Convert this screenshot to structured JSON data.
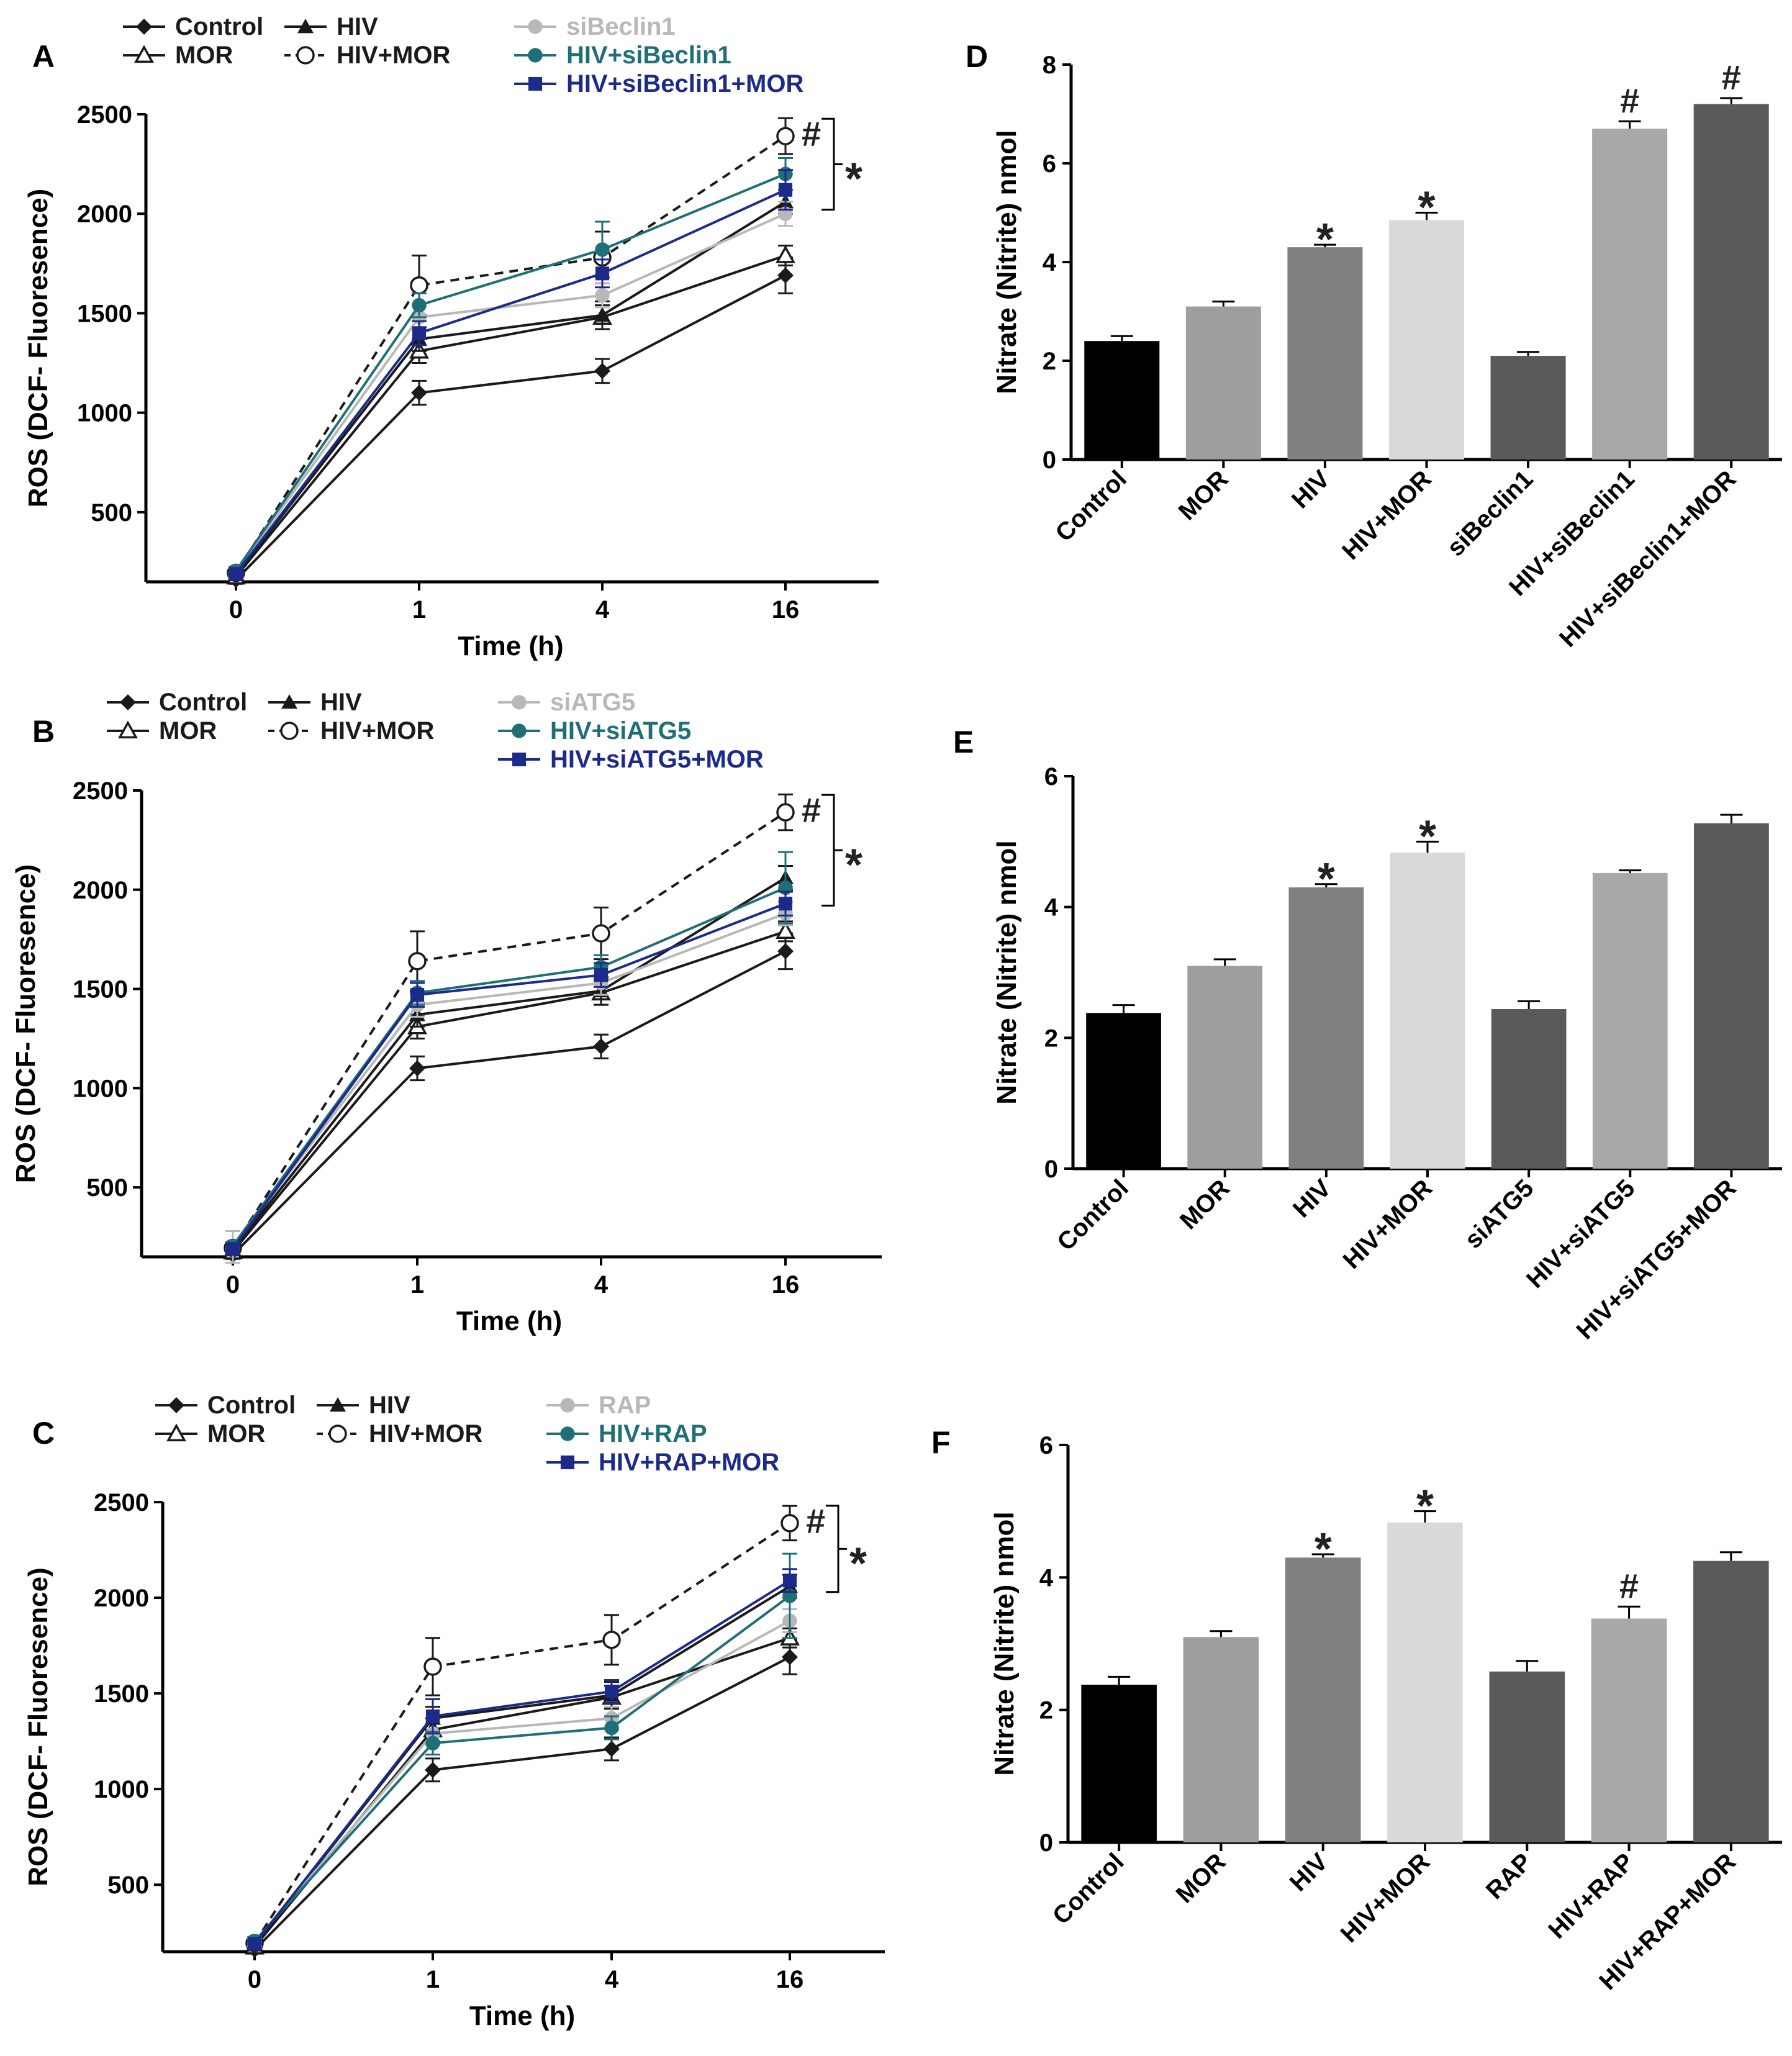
{
  "figure": {
    "bg": "#ffffff"
  },
  "chart_data": [
    {
      "id": "A",
      "panel_label": "A",
      "type": "line",
      "xlabel": "Time (h)",
      "ylabel": "ROS (DCF- Fluoresence)",
      "x": [
        "0",
        "1",
        "4",
        "16"
      ],
      "yticks": [
        "500",
        "1000",
        "1500",
        "2000",
        "2500"
      ],
      "ylim": [
        150,
        2500
      ],
      "series": [
        {
          "name": "Control",
          "values": [
            160,
            1100,
            1210,
            1690
          ],
          "err": [
            20,
            60,
            60,
            90
          ],
          "color": "#1a1a1a",
          "marker": "diamond",
          "dash": false
        },
        {
          "name": "MOR",
          "values": [
            175,
            1310,
            1480,
            1790
          ],
          "err": [
            20,
            60,
            60,
            50
          ],
          "color": "#1a1a1a",
          "marker": "triangle-open",
          "dash": false
        },
        {
          "name": "HIV",
          "values": [
            185,
            1370,
            1490,
            2060
          ],
          "err": [
            20,
            60,
            70,
            60
          ],
          "color": "#1a1a1a",
          "marker": "triangle",
          "dash": false
        },
        {
          "name": "HIV+MOR",
          "values": [
            195,
            1640,
            1780,
            2390
          ],
          "err": [
            20,
            150,
            130,
            90
          ],
          "color": "#1a1a1a",
          "marker": "circle-open",
          "dash": true
        },
        {
          "name": "siBeclin1",
          "values": [
            200,
            1480,
            1590,
            2000
          ],
          "err": [
            20,
            60,
            60,
            60
          ],
          "color": "#b8b8b8",
          "marker": "circle",
          "dash": false
        },
        {
          "name": "HIV+siBeclin1",
          "values": [
            205,
            1540,
            1820,
            2200
          ],
          "err": [
            20,
            60,
            140,
            80
          ],
          "color": "#1f6f78",
          "marker": "circle",
          "dash": false
        },
        {
          "name": "HIV+siBeclin1+MOR",
          "values": [
            190,
            1400,
            1700,
            2120
          ],
          "err": [
            20,
            60,
            70,
            100
          ],
          "color": "#1c2a8a",
          "marker": "square",
          "dash": false
        }
      ],
      "legend": [
        {
          "name": "Control",
          "col": 0,
          "row": 0
        },
        {
          "name": "MOR",
          "col": 0,
          "row": 1
        },
        {
          "name": "HIV",
          "col": 1,
          "row": 0
        },
        {
          "name": "HIV+MOR",
          "col": 1,
          "row": 1
        },
        {
          "name": "siBeclin1",
          "col": 2,
          "row": 0
        },
        {
          "name": "HIV+siBeclin1",
          "col": 2,
          "row": 1
        },
        {
          "name": "HIV+siBeclin1+MOR",
          "col": 2,
          "row": 2
        }
      ],
      "annotations": {
        "hash": "#",
        "star": "*"
      }
    },
    {
      "id": "B",
      "panel_label": "B",
      "type": "line",
      "xlabel": "Time (h)",
      "ylabel": "ROS (DCF- Fluoresence)",
      "x": [
        "0",
        "1",
        "4",
        "16"
      ],
      "yticks": [
        "500",
        "1000",
        "1500",
        "2000",
        "2500"
      ],
      "ylim": [
        150,
        2500
      ],
      "series": [
        {
          "name": "Control",
          "values": [
            160,
            1100,
            1210,
            1690
          ],
          "err": [
            20,
            60,
            60,
            90
          ],
          "color": "#1a1a1a",
          "marker": "diamond",
          "dash": false
        },
        {
          "name": "MOR",
          "values": [
            175,
            1310,
            1480,
            1790
          ],
          "err": [
            20,
            60,
            60,
            50
          ],
          "color": "#1a1a1a",
          "marker": "triangle-open",
          "dash": false
        },
        {
          "name": "HIV",
          "values": [
            185,
            1370,
            1490,
            2060
          ],
          "err": [
            20,
            60,
            70,
            60
          ],
          "color": "#1a1a1a",
          "marker": "triangle",
          "dash": false
        },
        {
          "name": "HIV+MOR",
          "values": [
            195,
            1640,
            1780,
            2390
          ],
          "err": [
            20,
            150,
            130,
            90
          ],
          "color": "#1a1a1a",
          "marker": "circle-open",
          "dash": true
        },
        {
          "name": "siATG5",
          "values": [
            200,
            1420,
            1530,
            1880
          ],
          "err": [
            80,
            60,
            60,
            60
          ],
          "color": "#b8b8b8",
          "marker": "circle",
          "dash": false
        },
        {
          "name": "HIV+siATG5",
          "values": [
            205,
            1480,
            1610,
            2010
          ],
          "err": [
            20,
            60,
            60,
            180
          ],
          "color": "#1f6f78",
          "marker": "circle",
          "dash": false
        },
        {
          "name": "HIV+siATG5+MOR",
          "values": [
            190,
            1470,
            1570,
            1930
          ],
          "err": [
            20,
            60,
            60,
            60
          ],
          "color": "#1c2a8a",
          "marker": "square",
          "dash": false
        }
      ],
      "legend": [
        {
          "name": "Control",
          "col": 0,
          "row": 0
        },
        {
          "name": "MOR",
          "col": 0,
          "row": 1
        },
        {
          "name": "HIV",
          "col": 1,
          "row": 0
        },
        {
          "name": "HIV+MOR",
          "col": 1,
          "row": 1
        },
        {
          "name": "siATG5",
          "col": 2,
          "row": 0
        },
        {
          "name": "HIV+siATG5",
          "col": 2,
          "row": 1
        },
        {
          "name": "HIV+siATG5+MOR",
          "col": 2,
          "row": 2
        }
      ],
      "annotations": {
        "hash": "#",
        "star": "*"
      }
    },
    {
      "id": "C",
      "panel_label": "C",
      "type": "line",
      "xlabel": "Time (h)",
      "ylabel": "ROS (DCF- Fluoresence)",
      "x": [
        "0",
        "1",
        "4",
        "16"
      ],
      "yticks": [
        "500",
        "1000",
        "1500",
        "2000",
        "2500"
      ],
      "ylim": [
        150,
        2500
      ],
      "series": [
        {
          "name": "Control",
          "values": [
            160,
            1100,
            1210,
            1690
          ],
          "err": [
            20,
            60,
            60,
            90
          ],
          "color": "#1a1a1a",
          "marker": "diamond",
          "dash": false
        },
        {
          "name": "MOR",
          "values": [
            175,
            1310,
            1480,
            1790
          ],
          "err": [
            20,
            60,
            60,
            50
          ],
          "color": "#1a1a1a",
          "marker": "triangle-open",
          "dash": false
        },
        {
          "name": "HIV",
          "values": [
            185,
            1370,
            1490,
            2060
          ],
          "err": [
            20,
            60,
            70,
            60
          ],
          "color": "#1a1a1a",
          "marker": "triangle",
          "dash": false
        },
        {
          "name": "HIV+MOR",
          "values": [
            195,
            1640,
            1780,
            2390
          ],
          "err": [
            20,
            150,
            130,
            90
          ],
          "color": "#1a1a1a",
          "marker": "circle-open",
          "dash": true
        },
        {
          "name": "RAP",
          "values": [
            200,
            1290,
            1370,
            1880
          ],
          "err": [
            20,
            60,
            60,
            60
          ],
          "color": "#b8b8b8",
          "marker": "circle",
          "dash": false
        },
        {
          "name": "HIV+RAP",
          "values": [
            205,
            1240,
            1320,
            2010
          ],
          "err": [
            20,
            60,
            60,
            220
          ],
          "color": "#1f6f78",
          "marker": "circle",
          "dash": false
        },
        {
          "name": "HIV+RAP+MOR",
          "values": [
            190,
            1380,
            1510,
            2090
          ],
          "err": [
            20,
            90,
            60,
            60
          ],
          "color": "#1c2a8a",
          "marker": "square",
          "dash": false
        }
      ],
      "legend": [
        {
          "name": "Control",
          "col": 0,
          "row": 0
        },
        {
          "name": "MOR",
          "col": 0,
          "row": 1
        },
        {
          "name": "HIV",
          "col": 1,
          "row": 0
        },
        {
          "name": "HIV+MOR",
          "col": 1,
          "row": 1
        },
        {
          "name": "RAP",
          "col": 2,
          "row": 0
        },
        {
          "name": "HIV+RAP",
          "col": 2,
          "row": 1
        },
        {
          "name": "HIV+RAP+MOR",
          "col": 2,
          "row": 2
        }
      ],
      "annotations": {
        "hash": "#",
        "star": "*"
      }
    },
    {
      "id": "D",
      "panel_label": "D",
      "type": "bar",
      "ylabel": "Nitrate (Nitrite) nmol",
      "ylim": [
        0,
        8
      ],
      "yticks": [
        "0",
        "2",
        "4",
        "6",
        "8"
      ],
      "categories": [
        "Control",
        "MOR",
        "HIV",
        "HIV+MOR",
        "siBeclin1",
        "HIV+siBeclin1",
        "HIV+siBeclin1+MOR"
      ],
      "values": [
        2.4,
        3.1,
        4.3,
        4.85,
        2.1,
        6.7,
        7.2
      ],
      "errors": [
        0.1,
        0.1,
        0.05,
        0.15,
        0.08,
        0.15,
        0.12
      ],
      "colors": [
        "#000000",
        "#9e9e9e",
        "#808080",
        "#d9d9d9",
        "#5a5a5a",
        "#a8a8a8",
        "#5a5a5a"
      ],
      "marks": [
        "",
        "",
        "*",
        "*",
        "",
        "#",
        "#"
      ]
    },
    {
      "id": "E",
      "panel_label": "E",
      "type": "bar",
      "ylabel": "Nitrate (Nitrite) nmol",
      "ylim": [
        0,
        6
      ],
      "yticks": [
        "0",
        "2",
        "4",
        "6"
      ],
      "categories": [
        "Control",
        "MOR",
        "HIV",
        "HIV+MOR",
        "siATG5",
        "HIV+siATG5",
        "HIV+siATG5+MOR"
      ],
      "values": [
        2.38,
        3.1,
        4.3,
        4.83,
        2.44,
        4.52,
        5.28
      ],
      "errors": [
        0.12,
        0.1,
        0.05,
        0.17,
        0.12,
        0.04,
        0.13
      ],
      "colors": [
        "#000000",
        "#9e9e9e",
        "#808080",
        "#d9d9d9",
        "#5a5a5a",
        "#a8a8a8",
        "#5a5a5a"
      ],
      "marks": [
        "",
        "",
        "*",
        "*",
        "",
        "",
        ""
      ]
    },
    {
      "id": "F",
      "panel_label": "F",
      "type": "bar",
      "ylabel": "Nitrate (Nitrite) nmol",
      "ylim": [
        0,
        6
      ],
      "yticks": [
        "0",
        "2",
        "4",
        "6"
      ],
      "categories": [
        "Control",
        "MOR",
        "HIV",
        "HIV+MOR",
        "RAP",
        "HIV+RAP",
        "HIV+RAP+MOR"
      ],
      "values": [
        2.38,
        3.1,
        4.3,
        4.83,
        2.58,
        3.38,
        4.25
      ],
      "errors": [
        0.12,
        0.09,
        0.05,
        0.17,
        0.16,
        0.18,
        0.13
      ],
      "colors": [
        "#000000",
        "#9e9e9e",
        "#808080",
        "#d9d9d9",
        "#5a5a5a",
        "#a8a8a8",
        "#5a5a5a"
      ],
      "marks": [
        "",
        "",
        "*",
        "*",
        "",
        "#",
        ""
      ]
    }
  ]
}
